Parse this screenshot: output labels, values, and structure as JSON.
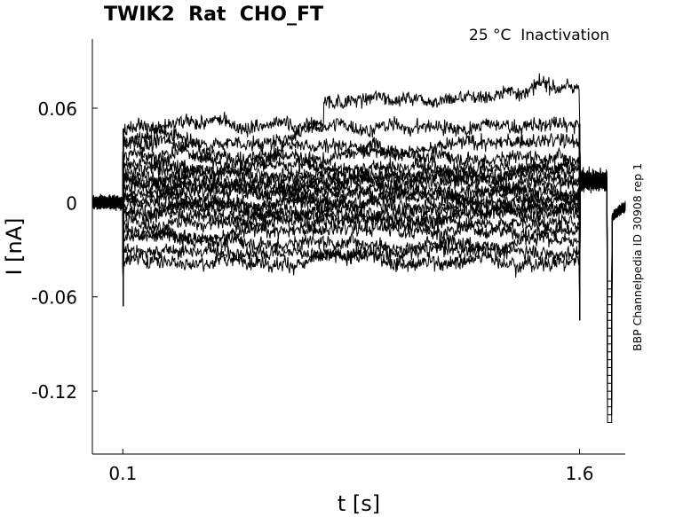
{
  "chart_data": {
    "type": "line",
    "title": "TWIK2  Rat  CHO_FT",
    "subtitle": "25 °C  Inactivation",
    "side_label": "BBP Channelpedia ID 30908 rep 1",
    "xlabel": "t [s]",
    "ylabel": "I [nA]",
    "x_ticks": [
      0.1,
      1.6
    ],
    "x_tick_labels": [
      "0.1",
      "1.6"
    ],
    "y_ticks": [
      0.06,
      0,
      -0.06,
      -0.12
    ],
    "y_tick_labels": [
      "0.06",
      "0",
      "-0.06",
      "-0.12"
    ],
    "xlim": [
      0.0,
      1.75
    ],
    "ylim": [
      -0.16,
      0.104
    ],
    "grid": false,
    "line_color": "#000000",
    "stimulus": {
      "step_on": 0.1,
      "step_off": 1.6,
      "tail_spike": 1.7
    },
    "series_levels": [
      0.078,
      0.048,
      0.038,
      0.03,
      0.024,
      0.02,
      0.016,
      0.012,
      0.009,
      0.006,
      0.003,
      0.0,
      -0.004,
      -0.008,
      -0.013,
      -0.018,
      -0.024,
      -0.03,
      -0.036
    ]
  }
}
